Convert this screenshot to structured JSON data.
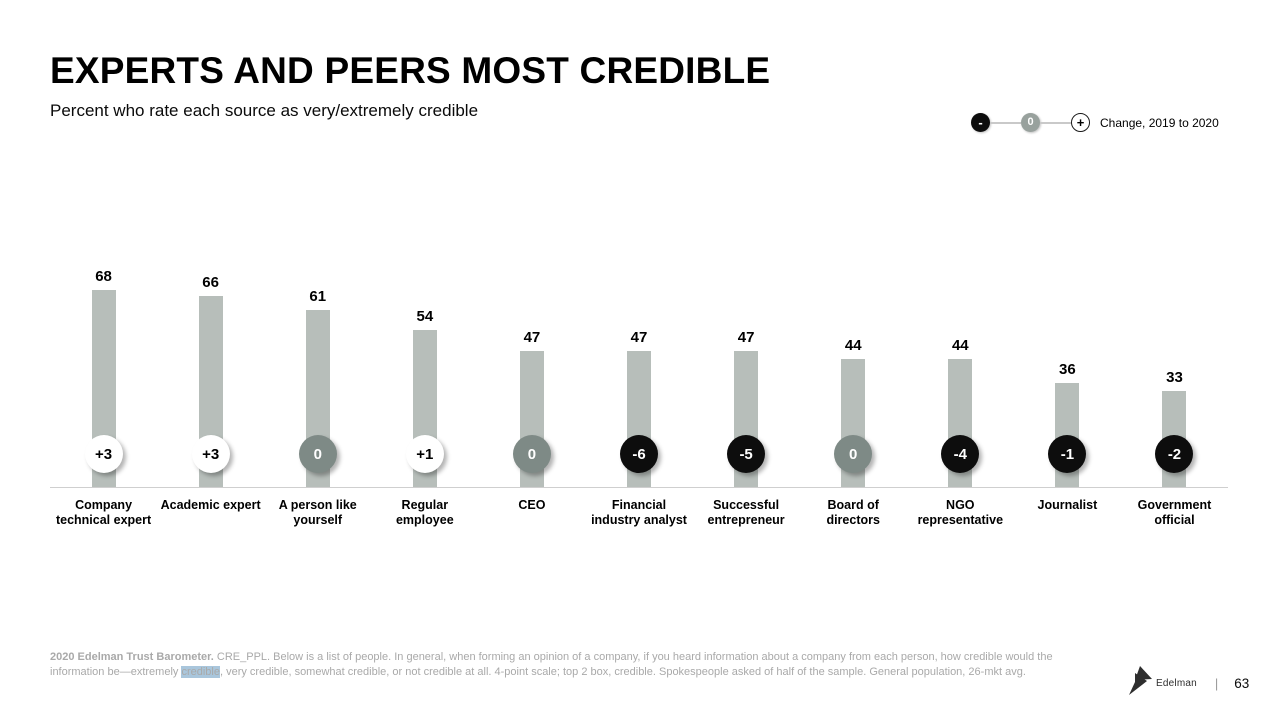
{
  "header": {
    "title": "EXPERTS AND PEERS MOST CREDIBLE",
    "subtitle": "Percent who rate each source as very/extremely credible"
  },
  "legend": {
    "minus_symbol": "-",
    "zero_symbol": "0",
    "plus_symbol": "+",
    "label": "Change, 2019 to 2020"
  },
  "chart_data": {
    "type": "bar",
    "title": "EXPERTS AND PEERS MOST CREDIBLE",
    "subtitle": "Percent who rate each source as very/extremely credible",
    "categories": [
      "Company technical expert",
      "Academic expert",
      "A person like yourself",
      "Regular employee",
      "CEO",
      "Financial industry analyst",
      "Successful entrepreneur",
      "Board of directors",
      "NGO representative",
      "Journalist",
      "Government official"
    ],
    "values": [
      68,
      66,
      61,
      54,
      47,
      47,
      47,
      44,
      44,
      36,
      33
    ],
    "changes": [
      "+3",
      "+3",
      "0",
      "+1",
      "0",
      "-6",
      "-5",
      "0",
      "-4",
      "-1",
      "-2"
    ],
    "change_types": [
      "positive",
      "positive",
      "zero",
      "positive",
      "zero",
      "negative",
      "negative",
      "zero",
      "negative",
      "negative",
      "negative"
    ],
    "ylim": [
      0,
      100
    ],
    "grid": false,
    "legend_label": "Change, 2019 to 2020",
    "legend_position": "top-right",
    "colors": {
      "bar": "#b7beba",
      "badge_positive": "#ffffff",
      "badge_zero": "#7e8a86",
      "badge_negative": "#0d0d0d",
      "highlight": "#a9c6dc"
    }
  },
  "footer": {
    "source_bold": "2020 Edelman Trust Barometer.",
    "text_part1": " CRE_PPL. Below is a list of people. In general, when forming an opinion of a company, if you heard information about a company from each person, how credible would the information be—extremely ",
    "highlighted_word": "credible",
    "text_part2": ", very credible, somewhat credible, or not credible at all. 4-point scale; top 2 box, credible. Spokespeople asked of half of the sample. General population, 26-mkt avg.",
    "brand": "Edelman",
    "divider": "|",
    "page_number": "63"
  }
}
